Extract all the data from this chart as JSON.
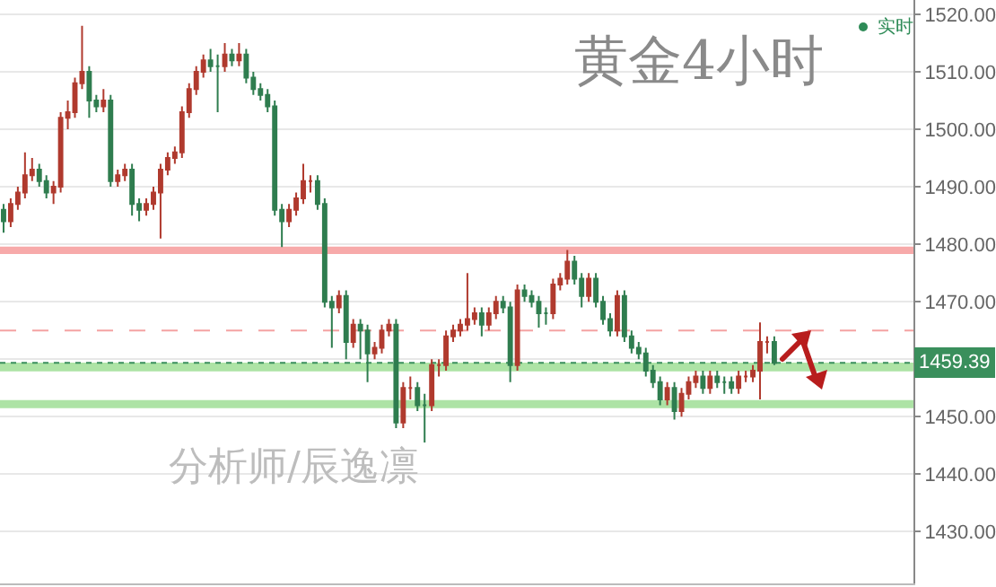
{
  "chart_data": {
    "type": "candlestick",
    "title": "黄金4小时",
    "annotations": [
      "实时",
      "分析师/辰逸凛"
    ],
    "categories": [
      null,
      null,
      null,
      null,
      null,
      null,
      null,
      null,
      null,
      null,
      null,
      null,
      null,
      null,
      null,
      null,
      null,
      null,
      null,
      null,
      null,
      null,
      null,
      null,
      null,
      null,
      null,
      null,
      null,
      null,
      null,
      null,
      null,
      null,
      null,
      null,
      null,
      null,
      null,
      null,
      null,
      null,
      null,
      null,
      null,
      null,
      null,
      null,
      null,
      null,
      null,
      null,
      null,
      null,
      null,
      null,
      null,
      null,
      null,
      null,
      null,
      null,
      null,
      null,
      null,
      null,
      null,
      null,
      null,
      null,
      null,
      null,
      null,
      null,
      null,
      null,
      null,
      null,
      null,
      null,
      null,
      null,
      null,
      null,
      null,
      null,
      null,
      null,
      null,
      null,
      null,
      null,
      null,
      null,
      null,
      null,
      null,
      null,
      null,
      null,
      null,
      null,
      null,
      null,
      null,
      null,
      null,
      null,
      null,
      null,
      null,
      null,
      null,
      null,
      null,
      null,
      null,
      null,
      null,
      null,
      null,
      null,
      null,
      null,
      null,
      null,
      null,
      null
    ],
    "ohlc": [
      [
        1486,
        1487,
        1482,
        1484
      ],
      [
        1484,
        1488,
        1483,
        1487
      ],
      [
        1487,
        1490,
        1486,
        1489
      ],
      [
        1489,
        1496,
        1488,
        1492
      ],
      [
        1492,
        1495,
        1491,
        1493
      ],
      [
        1493,
        1494,
        1490,
        1491
      ],
      [
        1491,
        1492,
        1488,
        1489
      ],
      [
        1489,
        1491,
        1487,
        1490
      ],
      [
        1490,
        1503,
        1489,
        1502
      ],
      [
        1502,
        1505,
        1500,
        1503
      ],
      [
        1503,
        1509,
        1502,
        1508
      ],
      [
        1508,
        1518,
        1507,
        1510
      ],
      [
        1510,
        1511,
        1502,
        1505
      ],
      [
        1505,
        1506,
        1503,
        1504
      ],
      [
        1504,
        1507,
        1503,
        1505
      ],
      [
        1505,
        1506,
        1490,
        1491
      ],
      [
        1491,
        1493,
        1490,
        1492
      ],
      [
        1492,
        1494,
        1491,
        1493
      ],
      [
        1493,
        1494,
        1485,
        1487
      ],
      [
        1487,
        1488,
        1484,
        1486
      ],
      [
        1486,
        1488,
        1485,
        1487
      ],
      [
        1487,
        1490,
        1486,
        1489
      ],
      [
        1489,
        1494,
        1481,
        1493
      ],
      [
        1493,
        1496,
        1492,
        1495
      ],
      [
        1495,
        1497,
        1494,
        1496
      ],
      [
        1496,
        1504,
        1495,
        1503
      ],
      [
        1503,
        1508,
        1502,
        1507
      ],
      [
        1507,
        1511,
        1506,
        1510
      ],
      [
        1510,
        1513,
        1509,
        1512
      ],
      [
        1512,
        1514,
        1510,
        1511
      ],
      [
        1511,
        1513,
        1503,
        1511
      ],
      [
        1511,
        1515,
        1510,
        1513
      ],
      [
        1513,
        1514,
        1511,
        1512
      ],
      [
        1512,
        1515,
        1511,
        1513
      ],
      [
        1513,
        1514,
        1508,
        1509
      ],
      [
        1509,
        1510,
        1506,
        1507
      ],
      [
        1507,
        1508,
        1505,
        1506
      ],
      [
        1506,
        1507,
        1503,
        1504
      ],
      [
        1504,
        1505,
        1485,
        1486
      ],
      [
        1486,
        1487,
        1479.5,
        1484
      ],
      [
        1484,
        1487,
        1483,
        1486
      ],
      [
        1486,
        1489,
        1485,
        1488
      ],
      [
        1488,
        1494,
        1487,
        1491
      ],
      [
        1491,
        1492,
        1489,
        1491
      ],
      [
        1491,
        1492,
        1486,
        1487
      ],
      [
        1487,
        1488,
        1469,
        1470
      ],
      [
        1470,
        1471,
        1462,
        1469
      ],
      [
        1469,
        1472,
        1468,
        1471
      ],
      [
        1471,
        1472,
        1460,
        1463
      ],
      [
        1463,
        1467,
        1462,
        1466
      ],
      [
        1466,
        1467,
        1460,
        1465
      ],
      [
        1465,
        1466,
        1456,
        1461
      ],
      [
        1461,
        1463,
        1460,
        1462
      ],
      [
        1462,
        1466,
        1461,
        1465
      ],
      [
        1465,
        1467,
        1464,
        1466
      ],
      [
        1466,
        1467,
        1448,
        1449
      ],
      [
        1449,
        1456,
        1448,
        1455
      ],
      [
        1455,
        1457,
        1453,
        1455
      ],
      [
        1455,
        1456,
        1451,
        1452
      ],
      [
        1452,
        1454,
        1445.5,
        1452
      ],
      [
        1452,
        1460,
        1451,
        1459
      ],
      [
        1459,
        1460,
        1457,
        1459
      ],
      [
        1459,
        1465,
        1458,
        1464
      ],
      [
        1464,
        1466,
        1463,
        1465
      ],
      [
        1465,
        1467,
        1464,
        1466
      ],
      [
        1466,
        1475,
        1465,
        1467
      ],
      [
        1467,
        1469,
        1466,
        1468
      ],
      [
        1468,
        1469,
        1464,
        1466
      ],
      [
        1466,
        1469,
        1465,
        1468
      ],
      [
        1468,
        1471,
        1467,
        1470
      ],
      [
        1470,
        1471,
        1468,
        1469
      ],
      [
        1469,
        1470,
        1456,
        1459
      ],
      [
        1459,
        1473,
        1458,
        1472
      ],
      [
        1472,
        1473,
        1470,
        1471
      ],
      [
        1471,
        1472,
        1469,
        1470
      ],
      [
        1470,
        1471,
        1465.5,
        1468
      ],
      [
        1468,
        1469,
        1466,
        1468
      ],
      [
        1468,
        1474,
        1467,
        1473
      ],
      [
        1473,
        1475,
        1472,
        1474
      ],
      [
        1474,
        1479,
        1473,
        1477
      ],
      [
        1477,
        1478,
        1473,
        1474
      ],
      [
        1474,
        1475,
        1469,
        1471
      ],
      [
        1471,
        1475,
        1470,
        1474
      ],
      [
        1474,
        1475,
        1469,
        1470
      ],
      [
        1470,
        1471,
        1466,
        1467
      ],
      [
        1467,
        1468,
        1464,
        1465
      ],
      [
        1465,
        1472,
        1464,
        1471
      ],
      [
        1471,
        1472,
        1463,
        1464
      ],
      [
        1464,
        1465,
        1461,
        1462
      ],
      [
        1462,
        1463,
        1460,
        1461
      ],
      [
        1461,
        1462,
        1457,
        1458
      ],
      [
        1458,
        1459,
        1455,
        1456
      ],
      [
        1456,
        1457,
        1452,
        1453
      ],
      [
        1453,
        1456,
        1452,
        1455
      ],
      [
        1455,
        1456,
        1449.5,
        1451
      ],
      [
        1451,
        1455,
        1450,
        1454
      ],
      [
        1454,
        1457,
        1453,
        1456
      ],
      [
        1456,
        1458,
        1455,
        1457
      ],
      [
        1457,
        1458,
        1454,
        1455
      ],
      [
        1455,
        1458,
        1454,
        1457
      ],
      [
        1457,
        1458,
        1455,
        1456
      ],
      [
        1456,
        1457,
        1454,
        1456
      ],
      [
        1456,
        1457,
        1454,
        1455
      ],
      [
        1455,
        1458,
        1454,
        1457
      ],
      [
        1457,
        1458,
        1456,
        1457
      ],
      [
        1457,
        1459,
        1456,
        1458
      ],
      [
        1458,
        1466.4,
        1453,
        1463
      ],
      [
        1463,
        1464,
        1461,
        1463
      ],
      [
        1463,
        1464,
        1459,
        1459.39
      ],
      null,
      null,
      null,
      null,
      null,
      null,
      null,
      null,
      null,
      null,
      null,
      null,
      null,
      null,
      null,
      null,
      null,
      null,
      null
    ],
    "ylim": [
      1421,
      1522.5
    ],
    "yticks": [
      {
        "value": 1430,
        "label": "1430.00"
      },
      {
        "value": 1440,
        "label": "1440.00"
      },
      {
        "value": 1450,
        "label": "1450.00"
      },
      {
        "value": 1460,
        "label": null
      },
      {
        "value": 1470,
        "label": "1470.00"
      },
      {
        "value": 1480,
        "label": "1480.00"
      },
      {
        "value": 1490,
        "label": "1490.00"
      },
      {
        "value": 1500,
        "label": "1500.00"
      },
      {
        "value": 1510,
        "label": "1510.00"
      },
      {
        "value": 1520,
        "label": "1520.00"
      }
    ],
    "ref_lines": [
      {
        "axis": "y",
        "value": 1465,
        "color": "#f4a3a3",
        "line_style": "dashed"
      },
      {
        "axis": "y",
        "value": 1459.39,
        "label": "1459.39",
        "color": "#3a8f5c",
        "line_style": "dotted"
      }
    ],
    "bands": [
      {
        "axis": "y",
        "from": 1478.3,
        "to": 1479.6,
        "color": "#f7aaaa"
      },
      {
        "axis": "y",
        "from": 1457.9,
        "to": 1459.4,
        "color": "#ade3a5"
      },
      {
        "axis": "y",
        "from": 1451.5,
        "to": 1452.9,
        "color": "#ade3a5"
      }
    ],
    "grid": "y"
  }
}
